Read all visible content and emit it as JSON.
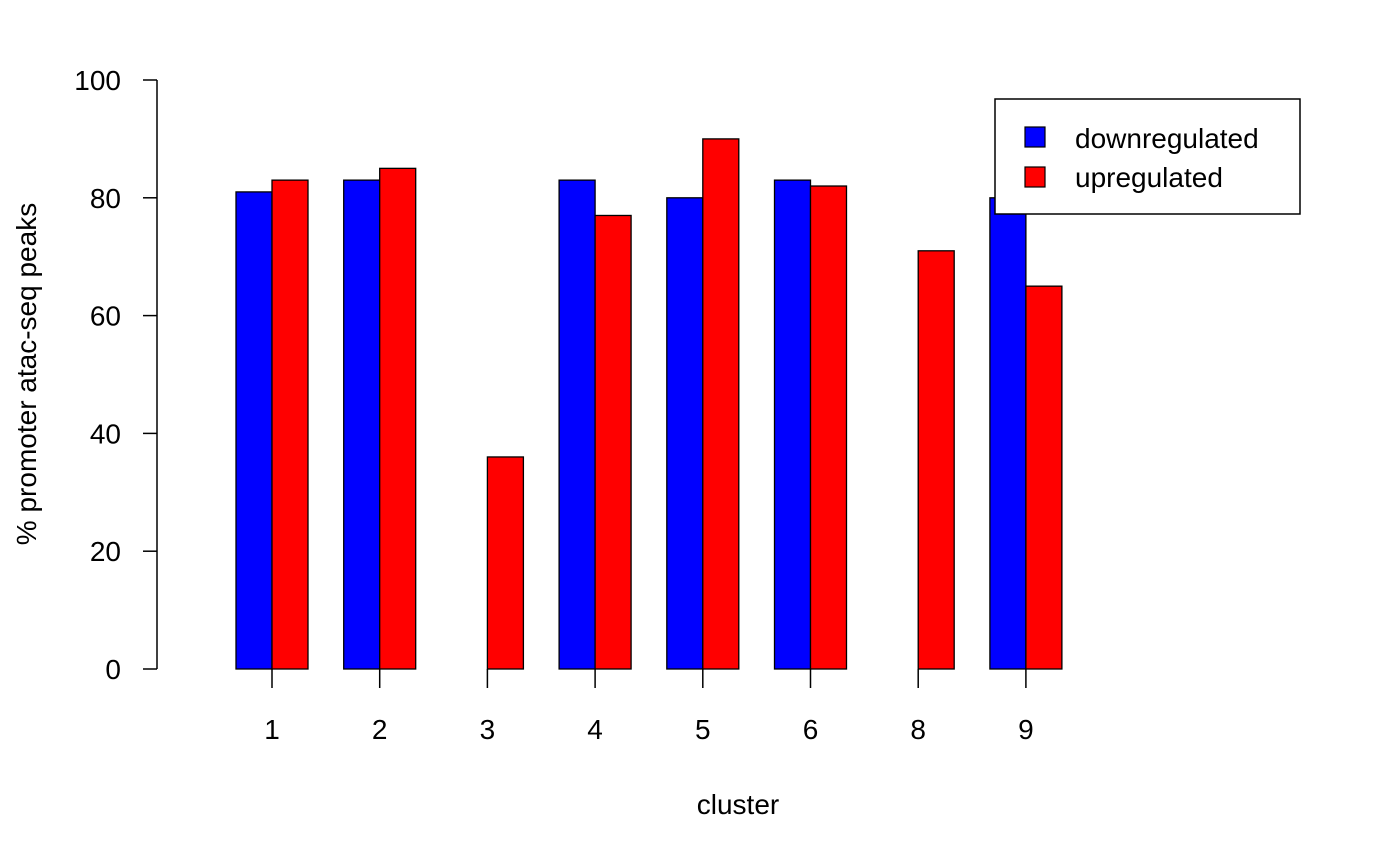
{
  "chart_data": {
    "type": "bar",
    "categories": [
      "1",
      "2",
      "3",
      "4",
      "5",
      "6",
      "8",
      "9"
    ],
    "series": [
      {
        "name": "downregulated",
        "color": "#0000FF",
        "values": [
          81,
          83,
          0,
          83,
          80,
          83,
          0,
          80
        ]
      },
      {
        "name": "upregulated",
        "color": "#FF0000",
        "values": [
          83,
          85,
          36,
          77,
          90,
          82,
          71,
          65
        ]
      }
    ],
    "xlabel": "cluster",
    "ylabel": "% promoter atac-seq peaks",
    "ylim": [
      0,
      100
    ],
    "yticks": [
      0,
      20,
      40,
      60,
      80,
      100
    ],
    "grid": false,
    "legend_position": "top-right"
  }
}
